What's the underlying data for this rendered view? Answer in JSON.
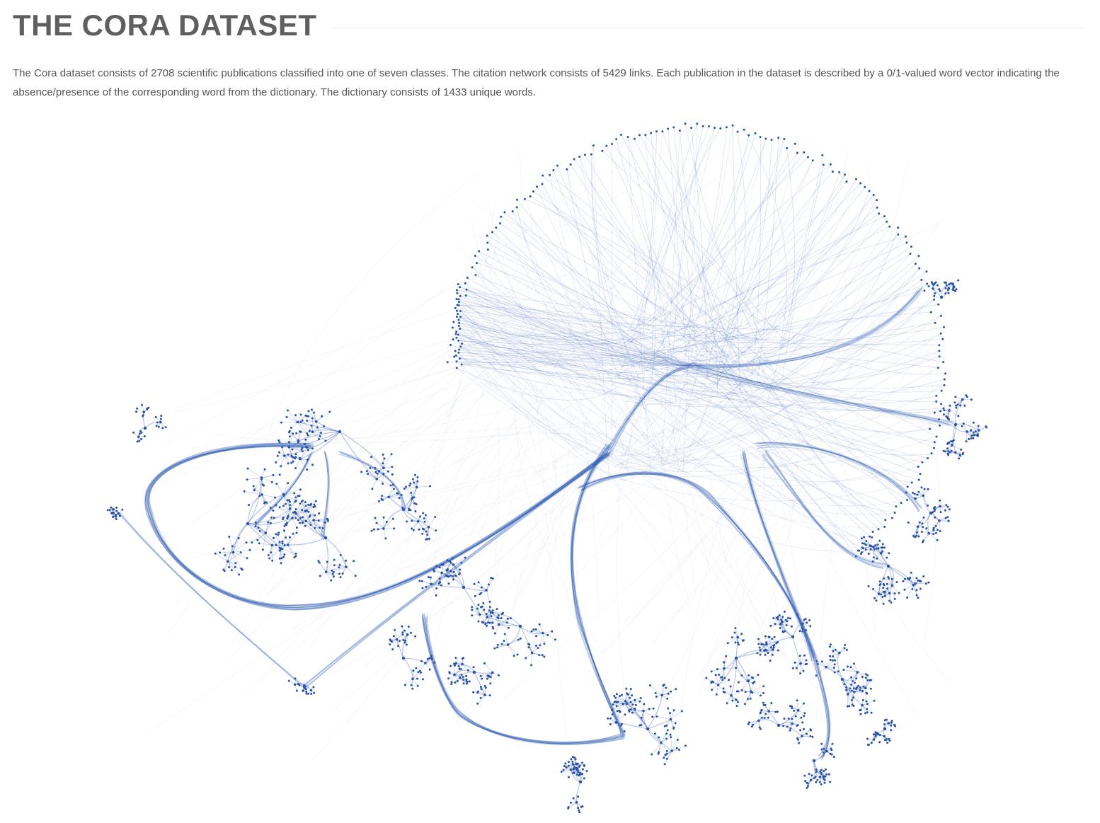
{
  "header": {
    "title": "THE CORA DATASET"
  },
  "description": "The Cora dataset consists of 2708 scientific publications classified into one of seven classes. The citation network consists of 5429 links. Each publication in the dataset is described by a 0/1-valued word vector indicating the absence/presence of the corresponding word from the dictionary. The dictionary consists of 1433 unique words.",
  "graph": {
    "colors": {
      "edge": "#2f5ab0",
      "node": "#2a52a6"
    }
  }
}
